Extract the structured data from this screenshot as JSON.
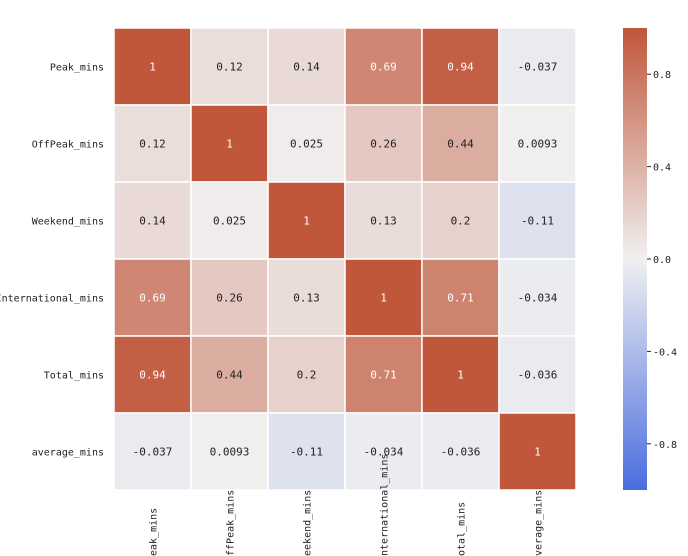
{
  "chart_data": {
    "type": "heatmap",
    "title": "",
    "xlabel": "",
    "ylabel": "",
    "row_labels": [
      "Peak_mins",
      "OffPeak_mins",
      "Weekend_mins",
      "International_mins",
      "Total_mins",
      "average_mins"
    ],
    "col_labels": [
      "Peak_mins",
      "OffPeak_mins",
      "Weekend_mins",
      "International_mins",
      "Total_mins",
      "average_mins"
    ],
    "values": [
      [
        1,
        0.12,
        0.14,
        0.69,
        0.94,
        -0.037
      ],
      [
        0.12,
        1,
        0.025,
        0.26,
        0.44,
        0.0093
      ],
      [
        0.14,
        0.025,
        1,
        0.13,
        0.2,
        -0.11
      ],
      [
        0.69,
        0.26,
        0.13,
        1,
        0.71,
        -0.034
      ],
      [
        0.94,
        0.44,
        0.2,
        0.71,
        1,
        -0.036
      ],
      [
        -0.037,
        0.0093,
        -0.11,
        -0.034,
        -0.036,
        1
      ]
    ],
    "cell_text": [
      [
        "1",
        "0.12",
        "0.14",
        "0.69",
        "0.94",
        "-0.037"
      ],
      [
        "0.12",
        "1",
        "0.025",
        "0.26",
        "0.44",
        "0.0093"
      ],
      [
        "0.14",
        "0.025",
        "1",
        "0.13",
        "0.2",
        "-0.11"
      ],
      [
        "0.69",
        "0.26",
        "0.13",
        "1",
        "0.71",
        "-0.034"
      ],
      [
        "0.94",
        "0.44",
        "0.2",
        "0.71",
        "1",
        "-0.036"
      ],
      [
        "-0.037",
        "0.0093",
        "-0.11",
        "-0.034",
        "-0.036",
        "1"
      ]
    ],
    "colorbar": {
      "range": [
        -1,
        1
      ],
      "ticks": [
        0.8,
        0.4,
        0.0,
        -0.4,
        -0.8
      ],
      "tick_labels": [
        "0.8",
        "0.4",
        "0.0",
        "-0.4",
        "-0.8"
      ]
    },
    "colors": {
      "negative": "#4a6ddf",
      "neutral": "#f0f0f0",
      "positive": "#c0563a",
      "grid_line": "#ffffff",
      "dark_text": "#222222",
      "light_text": "#ffffff"
    }
  }
}
